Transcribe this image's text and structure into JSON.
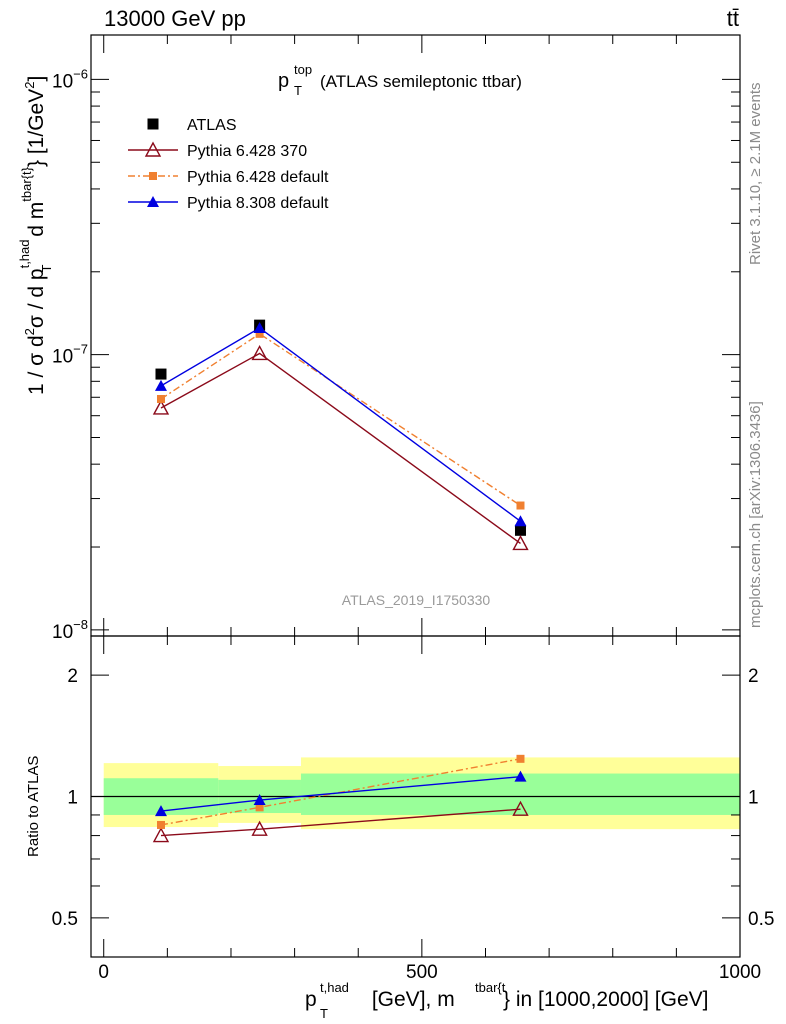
{
  "header": {
    "energy_label": "13000 GeV pp",
    "process_label": "tt̄"
  },
  "side_text": {
    "right_top": "Rivet 3.1.10, ≥ 2.1M events",
    "right_bottom": "mcplots.cern.ch [arXiv:1306.3436]"
  },
  "colors": {
    "atlas": "#000000",
    "p6_370": "#8b0a1a",
    "p6_default": "#f08030",
    "p8_default": "#0000e0",
    "band_outer": "#ffff99",
    "band_inner": "#99ff99",
    "watermark": "#9a9a9a"
  },
  "chart_data": [
    {
      "type": "line",
      "title": "p_T^top (ATLAS semileptonic ttbar)",
      "title_parts": {
        "main": "p",
        "sub": "T",
        "sup": "top",
        "rest": "(ATLAS semileptonic ttbar)"
      },
      "ylabel": "1 / σ d²σ / d p_T^{t,had} d m^{tbar{t}} [1/GeV²]",
      "ylabel_parts": {
        "a": "1 / σ d",
        "a_sup": "2",
        "b": "σ / d p",
        "b_sup": "t,had",
        "b_sub": "T",
        "c": " d m",
        "c_sup": "tbar{t}",
        "d": "} [1/GeV",
        "d_sup": "2",
        "e": "]"
      },
      "log_y": true,
      "xlim": [
        -20,
        1000
      ],
      "ylim": [
        9.5e-09,
        1.45e-06
      ],
      "y_tick_labels": [
        {
          "value": 1e-06,
          "base": "10",
          "exp": "−6"
        },
        {
          "value": 1e-07,
          "base": "10",
          "exp": "−7"
        },
        {
          "value": 1e-08,
          "base": "10",
          "exp": "−8"
        }
      ],
      "watermark": "ATLAS_2019_I1750330",
      "legend_position": "top-left",
      "series": [
        {
          "name": "ATLAS",
          "marker": "square",
          "line": "none",
          "x": [
            90,
            245,
            655
          ],
          "y": [
            8.5e-08,
            1.28e-07,
            2.3e-08
          ]
        },
        {
          "name": "Pythia 6.428 370",
          "marker": "open-triangle",
          "line": "solid",
          "x": [
            90,
            245,
            655
          ],
          "y": [
            6.4e-08,
            1.01e-07,
            2.06e-08
          ]
        },
        {
          "name": "Pythia 6.428 default",
          "marker": "small-square",
          "line": "dashdot",
          "x": [
            90,
            245,
            655
          ],
          "y": [
            6.9e-08,
            1.19e-07,
            2.83e-08
          ]
        },
        {
          "name": "Pythia 8.308 default",
          "marker": "triangle",
          "line": "solid",
          "x": [
            90,
            245,
            655
          ],
          "y": [
            7.7e-08,
            1.25e-07,
            2.48e-08
          ]
        }
      ]
    },
    {
      "type": "line",
      "ylabel": "Ratio to ATLAS",
      "xlabel": "p_T^{t,had} [GeV], m^{tbar{t}} in [1000,2000] [GeV]",
      "xlabel_parts": {
        "a": "p",
        "a_sup": "t,had",
        "a_sub": "T",
        "b": " [GeV], m",
        "b_sup": "tbar{t",
        "c": "} in [1000,2000] [GeV]"
      },
      "log_y": true,
      "xlim": [
        -20,
        1000
      ],
      "ylim": [
        0.4,
        2.5
      ],
      "x_ticks": [
        0,
        500,
        1000
      ],
      "y_ticks": [
        0.5,
        1,
        2
      ],
      "reference_line": 1,
      "uncertainty_bands": [
        {
          "x0": 0,
          "x1": 180,
          "outer": [
            0.84,
            1.21
          ],
          "inner": [
            0.9,
            1.11
          ]
        },
        {
          "x0": 180,
          "x1": 310,
          "outer": [
            0.86,
            1.19
          ],
          "inner": [
            0.91,
            1.1
          ]
        },
        {
          "x0": 310,
          "x1": 1000,
          "outer": [
            0.83,
            1.25
          ],
          "inner": [
            0.9,
            1.14
          ]
        }
      ],
      "series": [
        {
          "name": "Pythia 6.428 370",
          "x": [
            90,
            245,
            655
          ],
          "y": [
            0.8,
            0.83,
            0.93
          ]
        },
        {
          "name": "Pythia 6.428 default",
          "x": [
            90,
            245,
            655
          ],
          "y": [
            0.85,
            0.94,
            1.24
          ]
        },
        {
          "name": "Pythia 8.308 default",
          "x": [
            90,
            245,
            655
          ],
          "y": [
            0.92,
            0.98,
            1.12
          ]
        }
      ]
    }
  ]
}
